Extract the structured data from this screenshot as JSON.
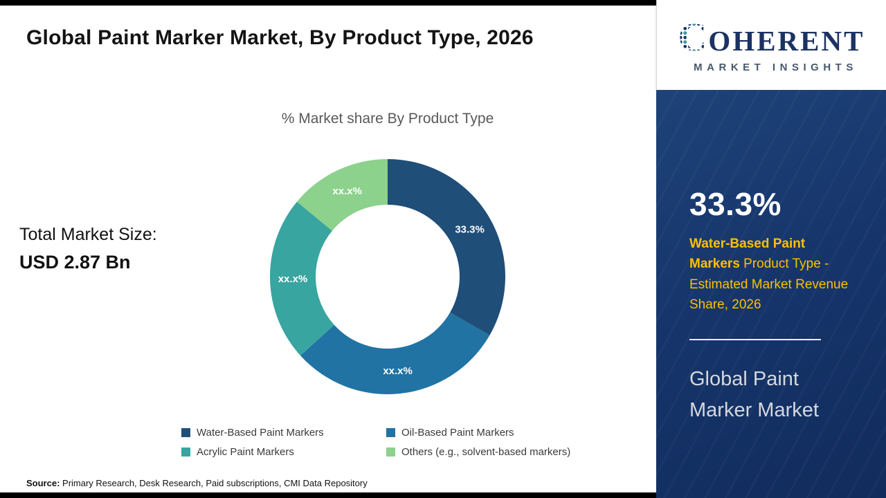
{
  "page": {
    "title": "Global Paint Marker Market, By Product Type, 2026",
    "total_market_label": "Total Market Size:",
    "total_market_value": "USD 2.87 Bn",
    "source_label": "Source:",
    "source_text": " Primary Research, Desk Research, Paid subscriptions, CMI Data Repository"
  },
  "logo": {
    "brand_c": "C",
    "brand_rest": "OHERENT",
    "tagline": "MARKET INSIGHTS",
    "brand_color": "#1B3263"
  },
  "panel": {
    "share_value": "33.3%",
    "highlight_bold": "Water-Based Paint Markers",
    "highlight_rest": " Product Type - Estimated Market Revenue Share, 2026",
    "market_name": "Global Paint Marker Market",
    "bg_color": "#16356B",
    "accent_color": "#FFC000"
  },
  "chart_data": {
    "type": "pie",
    "donut": true,
    "title": "% Market share By Product Type",
    "legend_position": "bottom",
    "start_angle_deg": 0,
    "segments": [
      {
        "label": "Water-Based Paint Markers",
        "value": 33.3,
        "display": "33.3%",
        "color": "#1F4E79"
      },
      {
        "label": "Oil-Based Paint Markers",
        "value": 30.0,
        "display": "xx.x%",
        "color": "#2173A3"
      },
      {
        "label": "Acrylic Paint Markers",
        "value": 22.7,
        "display": "xx.x%",
        "color": "#38A5A0"
      },
      {
        "label": "Others (e.g., solvent-based markers)",
        "value": 14.0,
        "display": "xx.x%",
        "color": "#8CD18C"
      }
    ]
  }
}
